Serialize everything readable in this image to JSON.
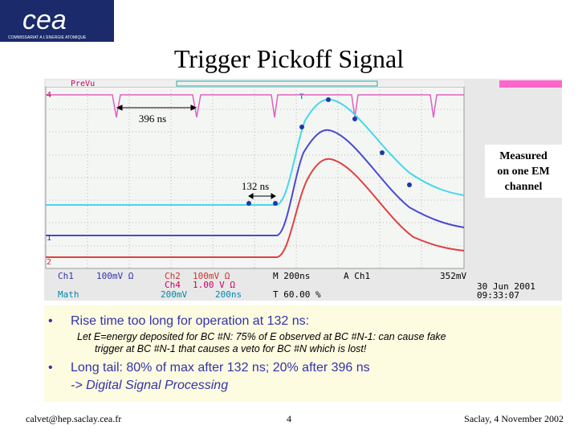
{
  "logo": {
    "name": "cea",
    "subtitle": "COMMISSARIAT A L'ENERGIE ATOMIQUE"
  },
  "title": "Trigger Pickoff Signal",
  "scope": {
    "preview": "PreVu",
    "trigger_marker": "T",
    "channel_markers": [
      "4",
      "1",
      "2"
    ],
    "annotations": [
      "396 ns",
      "132 ns"
    ],
    "note_lines": [
      "Measured",
      "on one EM",
      "channel"
    ],
    "status": {
      "ch1": "Ch1",
      "ch1_scale": "100mV Ω",
      "ch2": "Ch2",
      "ch2_scale": "100mV Ω",
      "timebase": "M 200ns",
      "trigger": "A Ch1",
      "trigger_level": "352mV",
      "ch4": "Ch4",
      "ch4_scale": "1.00 V Ω",
      "math": "Math",
      "math_scale": "200mV",
      "math_time": "200ns",
      "trigger_pos": "T 60.00 %",
      "date": "30 Jun 2001",
      "time": "09:33:07"
    }
  },
  "bullets": [
    {
      "text": "Rise time too long for operation at 132 ns:",
      "sub": [
        "Let E=energy deposited for BC #N: 75% of E observed at BC #N-1: can cause fake",
        "trigger at BC #N-1 that causes a veto for BC #N which is lost!"
      ]
    },
    {
      "text": "Long tail: 80% of max after 132 ns; 20% after 396 ns",
      "sub": [
        "-> Digital Signal Processing"
      ]
    }
  ],
  "footer": {
    "email": "calvet@hep.saclay.cea.fr",
    "page": "4",
    "date": "Saclay, 4 November 2002"
  }
}
